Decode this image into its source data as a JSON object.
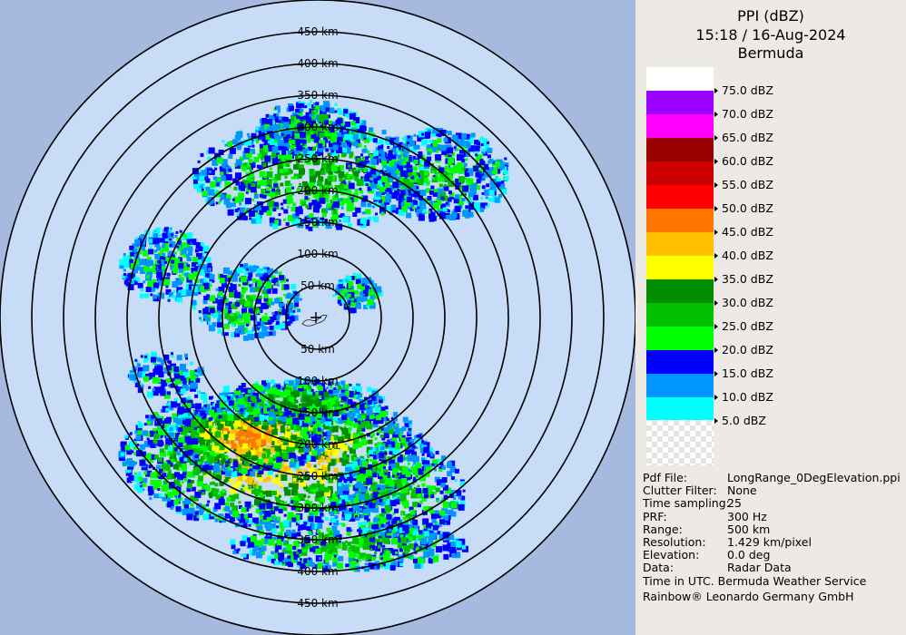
{
  "header": {
    "product": "PPI (dBZ)",
    "datetime": "15:18 / 16-Aug-2024",
    "site": "Bermuda"
  },
  "legend": {
    "items": [
      {
        "label": "75.0 dBZ",
        "color": "#ffffff"
      },
      {
        "label": "70.0 dBZ",
        "color": "#9900ff"
      },
      {
        "label": "65.0 dBZ",
        "color": "#ff00ff"
      },
      {
        "label": "60.0 dBZ",
        "color": "#990000"
      },
      {
        "label": "55.0 dBZ",
        "color": "#cc0000"
      },
      {
        "label": "50.0 dBZ",
        "color": "#ff0000"
      },
      {
        "label": "45.0 dBZ",
        "color": "#ff7700"
      },
      {
        "label": "40.0 dBZ",
        "color": "#ffc000"
      },
      {
        "label": "35.0 dBZ",
        "color": "#ffff00"
      },
      {
        "label": "30.0 dBZ",
        "color": "#008d00"
      },
      {
        "label": "25.0 dBZ",
        "color": "#00c000"
      },
      {
        "label": "20.0 dBZ",
        "color": "#00ff00"
      },
      {
        "label": "15.0 dBZ",
        "color": "#0000ff"
      },
      {
        "label": "10.0 dBZ",
        "color": "#0095ff"
      },
      {
        "label": "5.0 dBZ",
        "color": "#00ffff"
      }
    ]
  },
  "info": [
    {
      "key": "Pdf File:",
      "value": "LongRange_0DegElevation.ppi"
    },
    {
      "key": "Clutter Filter:",
      "value": "None"
    },
    {
      "key": "Time sampling:",
      "value": "25"
    },
    {
      "key": "PRF:",
      "value": "300 Hz"
    },
    {
      "key": "Range:",
      "value": "500 km"
    },
    {
      "key": "Resolution:",
      "value": "1.429 km/pixel"
    },
    {
      "key": "Elevation:",
      "value": "0.0 deg"
    },
    {
      "key": "Data:",
      "value": "Radar Data"
    }
  ],
  "footer": {
    "line1": "Time in UTC. Bermuda Weather Service",
    "line2": "Rainbow® Leonardo Germany GmbH"
  },
  "map": {
    "range_rings_km": [
      "50 km",
      "100 km",
      "150 km",
      "200 km",
      "250 km",
      "300 km",
      "350 km",
      "400 km",
      "450 km"
    ],
    "colors": {
      "in_range": "#c6dcf7",
      "out_of_range": "#a6b9de",
      "ring": "#000000"
    }
  }
}
